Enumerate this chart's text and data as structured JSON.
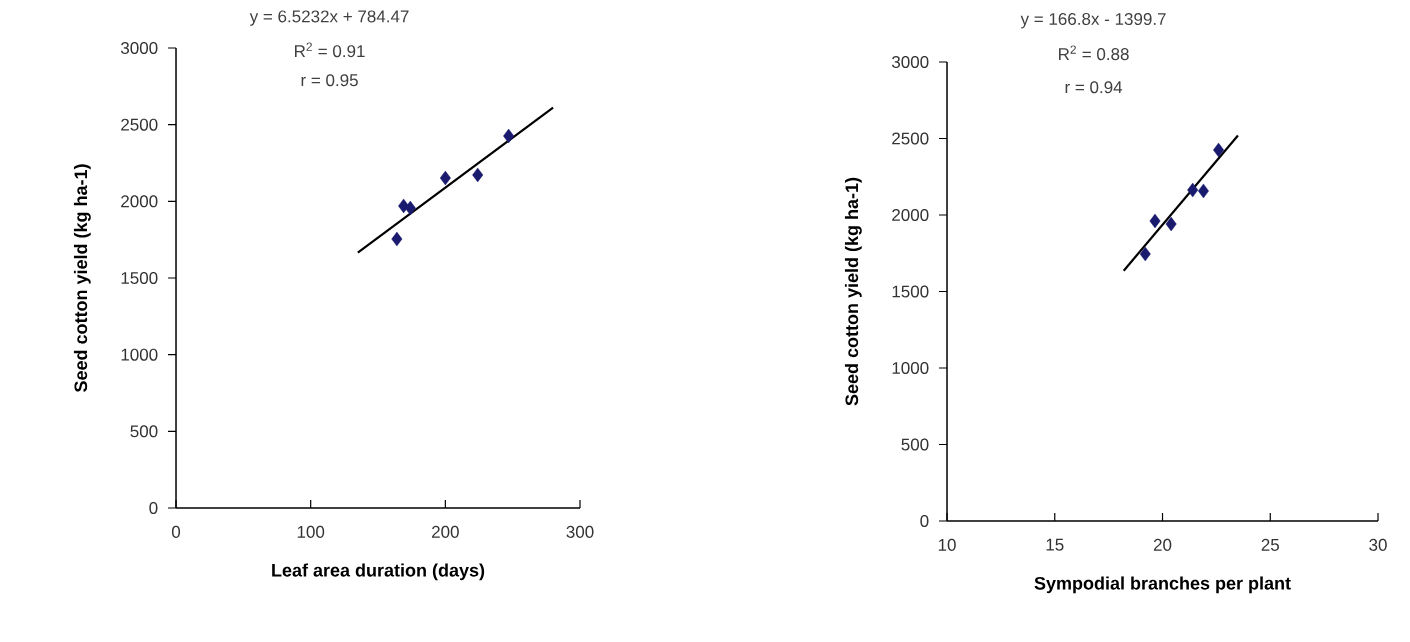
{
  "chart_data": [
    {
      "type": "scatter",
      "xlabel": "Leaf area duration (days)",
      "ylabel": "Seed cotton yield (kg ha-1)",
      "xlim": [
        0,
        300
      ],
      "ylim": [
        0,
        3000
      ],
      "xticks": [
        0,
        100,
        200,
        300
      ],
      "yticks": [
        0,
        500,
        1000,
        1500,
        2000,
        2500,
        3000
      ],
      "series": [
        {
          "type": "scatter",
          "marker": "diamond",
          "color": "#1a1a6e",
          "x": [
            164,
            169,
            174,
            200,
            224,
            247
          ],
          "values": [
            1754,
            1970,
            1956,
            2152,
            2172,
            2426
          ]
        },
        {
          "type": "line",
          "marker": "none",
          "color": "#000000",
          "x": [
            135,
            280
          ],
          "values": [
            1665,
            2611
          ]
        }
      ],
      "annotations": [
        "y = 6.5232x + 784.47",
        "R$^{2}$ = 0.91",
        "r = 0.95"
      ]
    },
    {
      "type": "scatter",
      "xlabel": "Sympodial branches per plant",
      "ylabel": "Seed cotton yield (kg ha-1)",
      "xlim": [
        10,
        30
      ],
      "ylim": [
        0,
        3000
      ],
      "xticks": [
        10,
        15,
        20,
        25,
        30
      ],
      "yticks": [
        0,
        500,
        1000,
        1500,
        2000,
        2500,
        3000
      ],
      "series": [
        {
          "type": "scatter",
          "marker": "diamond",
          "color": "#1a1a6e",
          "x": [
            19.2,
            19.65,
            20.4,
            21.4,
            21.9,
            22.6
          ],
          "values": [
            1745,
            1961,
            1941,
            2163,
            2157,
            2425
          ]
        },
        {
          "type": "line",
          "marker": "none",
          "color": "#000000",
          "x": [
            18.2,
            23.5
          ],
          "values": [
            1636,
            2520
          ]
        }
      ],
      "annotations": [
        "y = 166.8x - 1399.7",
        "R$^{2}$ = 0.88",
        "r = 0.94"
      ]
    }
  ]
}
